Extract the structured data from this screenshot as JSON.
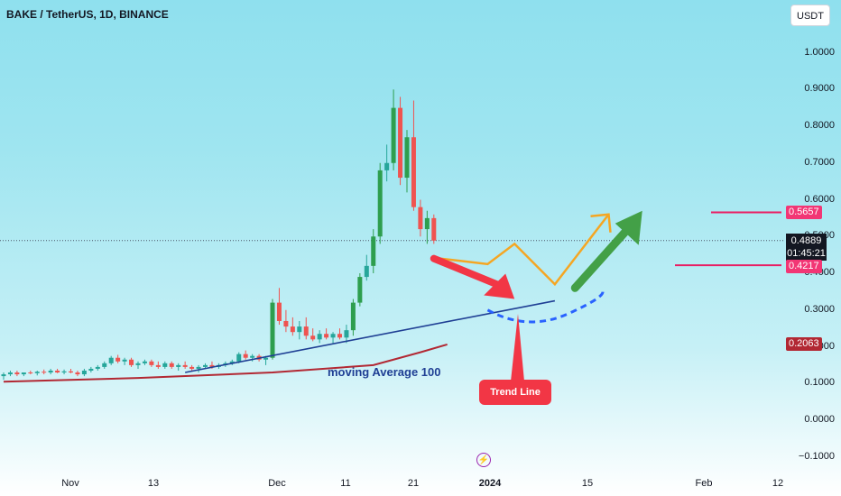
{
  "header": {
    "title": "BAKE / TetherUS, 1D, BINANCE"
  },
  "currency_button": {
    "label": "USDT"
  },
  "price_tags": {
    "current_price": "0.4889",
    "countdown": "01:45:21",
    "target_upper": "0.5657",
    "target_lower": "0.4217",
    "ma_value": "0.2063"
  },
  "annotations": {
    "ma_label": "moving Average 100",
    "trend_callout": "Trend Line",
    "event_icon": "lightning-icon"
  },
  "colors": {
    "up_candle": "#26a69a",
    "up_candle_strong": "#2e9e4e",
    "down_candle": "#ef5350",
    "ma_line": "#b22833",
    "trend_line": "#1f3f94",
    "projection_orange": "#f5a623",
    "projection_green": "#43a047",
    "arrow_red": "#f23645",
    "dashed_curve": "#2962ff",
    "level_line": "#e91e63"
  },
  "chart_data": {
    "type": "candlestick",
    "title": "BAKE / TetherUS, 1D, BINANCE",
    "y_axis": {
      "ticks": [
        "1.0000",
        "0.9000",
        "0.8000",
        "0.7000",
        "0.6000",
        "0.5000",
        "0.4000",
        "0.3000",
        "0.2000",
        "0.1000",
        "0.0000",
        "−0.1000"
      ],
      "ylim": [
        -0.12,
        1.08
      ]
    },
    "x_axis": {
      "ticks": [
        "Nov",
        "13",
        "Dec",
        "11",
        "21",
        "2024",
        "15",
        "Feb",
        "12"
      ],
      "bold_ticks": [
        "2024"
      ]
    },
    "candles_note": "daily OHLC, approx. Oct 29 2023 – Jan 1 2024",
    "candles": [
      [
        0.12,
        0.13,
        0.11,
        0.125
      ],
      [
        0.125,
        0.135,
        0.12,
        0.13
      ],
      [
        0.13,
        0.135,
        0.12,
        0.125
      ],
      [
        0.125,
        0.13,
        0.12,
        0.13
      ],
      [
        0.13,
        0.135,
        0.125,
        0.128
      ],
      [
        0.128,
        0.135,
        0.122,
        0.132
      ],
      [
        0.132,
        0.138,
        0.125,
        0.13
      ],
      [
        0.13,
        0.14,
        0.125,
        0.135
      ],
      [
        0.135,
        0.14,
        0.128,
        0.13
      ],
      [
        0.13,
        0.138,
        0.125,
        0.133
      ],
      [
        0.133,
        0.14,
        0.128,
        0.13
      ],
      [
        0.13,
        0.135,
        0.12,
        0.125
      ],
      [
        0.125,
        0.14,
        0.12,
        0.135
      ],
      [
        0.135,
        0.145,
        0.13,
        0.14
      ],
      [
        0.14,
        0.15,
        0.135,
        0.145
      ],
      [
        0.145,
        0.16,
        0.14,
        0.155
      ],
      [
        0.155,
        0.175,
        0.15,
        0.17
      ],
      [
        0.17,
        0.178,
        0.155,
        0.16
      ],
      [
        0.16,
        0.17,
        0.15,
        0.165
      ],
      [
        0.165,
        0.17,
        0.145,
        0.15
      ],
      [
        0.15,
        0.16,
        0.14,
        0.155
      ],
      [
        0.155,
        0.165,
        0.15,
        0.16
      ],
      [
        0.16,
        0.165,
        0.145,
        0.15
      ],
      [
        0.15,
        0.16,
        0.14,
        0.145
      ],
      [
        0.145,
        0.16,
        0.14,
        0.155
      ],
      [
        0.155,
        0.16,
        0.14,
        0.145
      ],
      [
        0.145,
        0.155,
        0.135,
        0.15
      ],
      [
        0.15,
        0.16,
        0.14,
        0.145
      ],
      [
        0.145,
        0.15,
        0.135,
        0.14
      ],
      [
        0.14,
        0.15,
        0.13,
        0.145
      ],
      [
        0.145,
        0.155,
        0.14,
        0.15
      ],
      [
        0.15,
        0.16,
        0.14,
        0.145
      ],
      [
        0.145,
        0.155,
        0.14,
        0.15
      ],
      [
        0.15,
        0.16,
        0.145,
        0.155
      ],
      [
        0.155,
        0.165,
        0.15,
        0.16
      ],
      [
        0.16,
        0.185,
        0.155,
        0.18
      ],
      [
        0.18,
        0.19,
        0.165,
        0.17
      ],
      [
        0.17,
        0.18,
        0.16,
        0.175
      ],
      [
        0.175,
        0.18,
        0.16,
        0.165
      ],
      [
        0.165,
        0.175,
        0.15,
        0.17
      ],
      [
        0.17,
        0.33,
        0.165,
        0.32
      ],
      [
        0.32,
        0.36,
        0.26,
        0.27
      ],
      [
        0.27,
        0.3,
        0.24,
        0.255
      ],
      [
        0.255,
        0.28,
        0.23,
        0.24
      ],
      [
        0.24,
        0.27,
        0.22,
        0.255
      ],
      [
        0.255,
        0.28,
        0.22,
        0.23
      ],
      [
        0.23,
        0.25,
        0.215,
        0.22
      ],
      [
        0.22,
        0.245,
        0.21,
        0.235
      ],
      [
        0.235,
        0.25,
        0.22,
        0.225
      ],
      [
        0.225,
        0.24,
        0.21,
        0.235
      ],
      [
        0.235,
        0.25,
        0.22,
        0.225
      ],
      [
        0.225,
        0.26,
        0.21,
        0.245
      ],
      [
        0.245,
        0.33,
        0.23,
        0.32
      ],
      [
        0.32,
        0.4,
        0.31,
        0.39
      ],
      [
        0.39,
        0.45,
        0.38,
        0.42
      ],
      [
        0.42,
        0.52,
        0.4,
        0.5
      ],
      [
        0.5,
        0.7,
        0.48,
        0.68
      ],
      [
        0.68,
        0.75,
        0.65,
        0.7
      ],
      [
        0.7,
        0.9,
        0.68,
        0.85
      ],
      [
        0.85,
        0.88,
        0.64,
        0.66
      ],
      [
        0.66,
        0.79,
        0.62,
        0.77
      ],
      [
        0.77,
        0.87,
        0.57,
        0.58
      ],
      [
        0.58,
        0.6,
        0.5,
        0.52
      ],
      [
        0.52,
        0.57,
        0.48,
        0.55
      ],
      [
        0.55,
        0.56,
        0.48,
        0.4889
      ]
    ],
    "series": [
      {
        "name": "moving Average 100",
        "type": "line",
        "points": [
          [
            0,
            0.105
          ],
          [
            20,
            0.115
          ],
          [
            40,
            0.13
          ],
          [
            55,
            0.15
          ],
          [
            62,
            0.185
          ],
          [
            66,
            0.2063
          ]
        ]
      }
    ],
    "drawings": {
      "horizontal_levels": [
        0.5657,
        0.4217
      ],
      "trend_line": {
        "from": [
          27,
          0.13
        ],
        "to": [
          82,
          0.325
        ]
      },
      "projection_orange": [
        [
          65,
          0.44
        ],
        [
          72,
          0.425
        ],
        [
          76,
          0.48
        ],
        [
          82,
          0.37
        ],
        [
          90,
          0.56
        ]
      ],
      "projection_green_arrow": {
        "from": [
          85,
          0.36
        ],
        "to": [
          95,
          0.57
        ]
      },
      "red_arrow": {
        "from": [
          64,
          0.44
        ],
        "to": [
          76,
          0.33
        ]
      },
      "dashed_curve": [
        [
          72,
          0.3
        ],
        [
          78,
          0.27
        ],
        [
          84,
          0.29
        ],
        [
          89,
          0.355
        ]
      ]
    }
  }
}
